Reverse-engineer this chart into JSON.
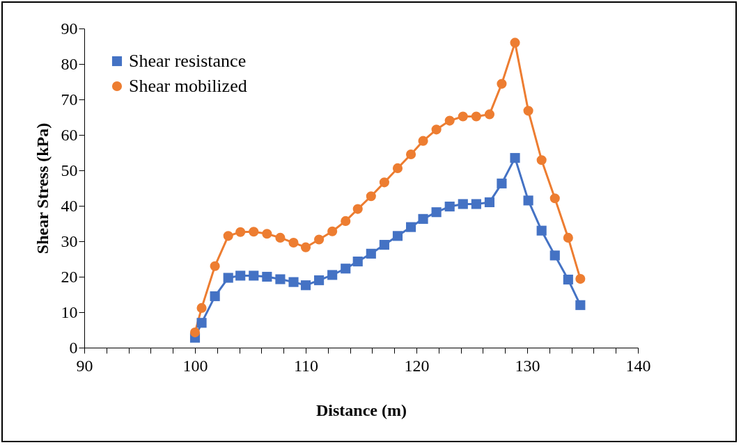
{
  "chart_data": {
    "type": "line",
    "xlabel": "Distance (m)",
    "ylabel": "Shear Stress  (kPa)",
    "xlim": [
      90,
      140
    ],
    "ylim": [
      0,
      90
    ],
    "xticks": [
      90,
      {
        "value": 92,
        "label": null
      },
      {
        "value": 94,
        "label": null
      },
      {
        "value": 96,
        "label": null
      },
      {
        "value": 98,
        "label": null
      },
      100,
      {
        "value": 102,
        "label": null
      },
      {
        "value": 104,
        "label": null
      },
      {
        "value": 106,
        "label": null
      },
      {
        "value": 108,
        "label": null
      },
      110,
      {
        "value": 112,
        "label": null
      },
      {
        "value": 114,
        "label": null
      },
      {
        "value": 116,
        "label": null
      },
      {
        "value": 118,
        "label": null
      },
      120,
      {
        "value": 122,
        "label": null
      },
      {
        "value": 124,
        "label": null
      },
      {
        "value": 126,
        "label": null
      },
      {
        "value": 128,
        "label": null
      },
      130,
      {
        "value": 132,
        "label": null
      },
      {
        "value": 134,
        "label": null
      },
      {
        "value": 136,
        "label": null
      },
      {
        "value": 138,
        "label": null
      },
      140
    ],
    "yticks": [
      0,
      10,
      20,
      30,
      40,
      50,
      60,
      70,
      80,
      90
    ],
    "grid": false,
    "legend": "top left",
    "line_style": "solid",
    "x": [
      100,
      100.6,
      101.8,
      103,
      104.1,
      105.3,
      106.5,
      107.7,
      108.9,
      110,
      111.2,
      112.4,
      113.6,
      114.7,
      115.9,
      117.1,
      118.3,
      119.5,
      120.6,
      121.8,
      123,
      124.2,
      125.4,
      126.6,
      127.7,
      128.9,
      130.1,
      131.3,
      132.5,
      133.7,
      134.8
    ],
    "series": [
      {
        "name": "Shear resistance",
        "color": "#4472c4",
        "marker": "square",
        "values": [
          2.8,
          7,
          14.5,
          19.7,
          20.3,
          20.3,
          20,
          19.3,
          18.5,
          17.6,
          19,
          20.5,
          22.3,
          24.3,
          26.5,
          29,
          31.5,
          34,
          36.3,
          38.2,
          39.8,
          40.5,
          40.5,
          41,
          46.3,
          53.5,
          41.5,
          33,
          26,
          19.2,
          12
        ]
      },
      {
        "name": "Shear mobilized",
        "color": "#ed7d31",
        "marker": "circle",
        "values": [
          4.3,
          11.2,
          23,
          31.5,
          32.6,
          32.7,
          32.1,
          31,
          29.6,
          28.3,
          30.5,
          32.8,
          35.7,
          39.1,
          42.7,
          46.6,
          50.6,
          54.5,
          58.3,
          61.5,
          64,
          65.2,
          65.2,
          65.8,
          74.4,
          86,
          66.8,
          52.9,
          42.1,
          31,
          19.4
        ]
      }
    ]
  }
}
